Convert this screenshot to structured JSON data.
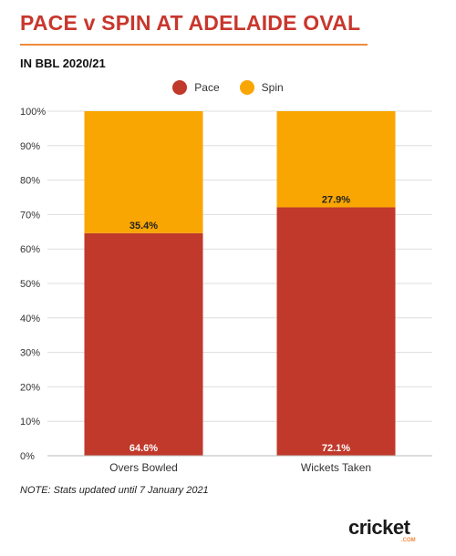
{
  "header": {
    "title": "PACE v SPIN AT ADELAIDE OVAL",
    "subtitle": "IN BBL 2020/21"
  },
  "note": "NOTE: Stats updated until 7 January 2021",
  "logo": {
    "word": "cricket",
    "sub": ".COM"
  },
  "colors": {
    "pace": "#c0392b",
    "spin": "#f9a602",
    "title": "#c8372d",
    "rule": "#f08a3c"
  },
  "chart_data": {
    "type": "bar",
    "stacked": true,
    "categories": [
      "Overs Bowled",
      "Wickets Taken"
    ],
    "series": [
      {
        "name": "Pace",
        "values": [
          64.6,
          72.1
        ],
        "labels": [
          "64.6%",
          "72.1%"
        ]
      },
      {
        "name": "Spin",
        "values": [
          35.4,
          27.9
        ],
        "labels": [
          "35.4%",
          "27.9%"
        ]
      }
    ],
    "ylim": [
      0,
      100
    ],
    "yticks": [
      "0%",
      "10%",
      "20%",
      "30%",
      "40%",
      "50%",
      "60%",
      "70%",
      "80%",
      "90%",
      "100%"
    ],
    "grid": true,
    "legend": "top-center"
  }
}
